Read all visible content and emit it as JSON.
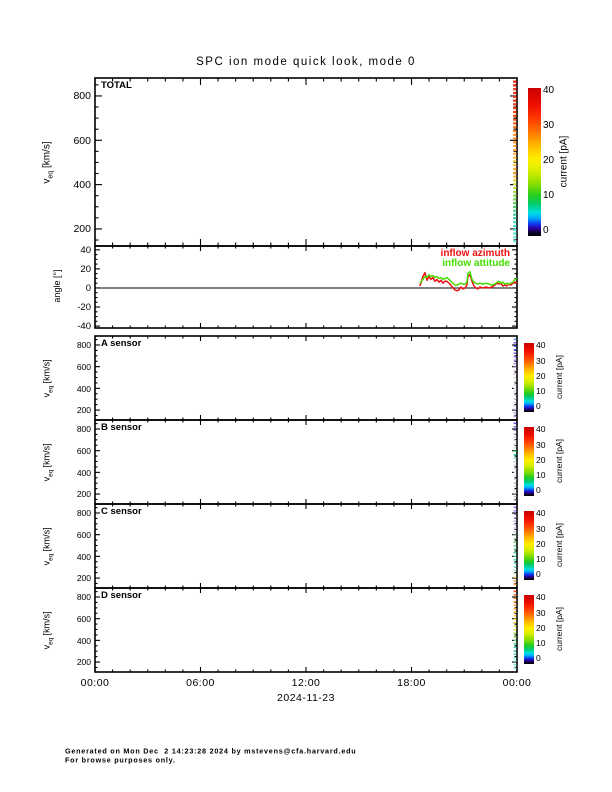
{
  "page": {
    "title": "SPC ion mode quick look, mode 0"
  },
  "footer": {
    "line1": "Generated on Mon Dec  2 14:23:28 2024 by mstevens@cfa.harvard.edu",
    "line2": "For browse purposes only."
  },
  "chart_data": {
    "type": "line",
    "title": "SPC ion mode quick look, mode 0",
    "x_axis": {
      "tick_labels": [
        "00:00",
        "06:00",
        "12:00",
        "18:00",
        "00:00"
      ],
      "tick_hours": [
        0,
        6,
        12,
        18,
        24
      ],
      "date_label": "2024-11-23",
      "range_hours": [
        0,
        24
      ],
      "major_step_hours": 6,
      "minor_step_hours": 1
    },
    "colorbar": {
      "title": "current [pA]",
      "ticks": [
        0,
        10,
        20,
        30,
        40
      ],
      "range": [
        0,
        40
      ],
      "gradient_stops": [
        {
          "at": 0.0,
          "color": "#000000"
        },
        {
          "at": 0.02,
          "color": "#0a0020"
        },
        {
          "at": 0.05,
          "color": "#2a00a0"
        },
        {
          "at": 0.08,
          "color": "#1133ee"
        },
        {
          "at": 0.12,
          "color": "#00aaff"
        },
        {
          "at": 0.16,
          "color": "#00e0e0"
        },
        {
          "at": 0.21,
          "color": "#00cc77"
        },
        {
          "at": 0.27,
          "color": "#22cc22"
        },
        {
          "at": 0.35,
          "color": "#88dd00"
        },
        {
          "at": 0.44,
          "color": "#d8ee00"
        },
        {
          "at": 0.52,
          "color": "#ffee00"
        },
        {
          "at": 0.61,
          "color": "#ffbb00"
        },
        {
          "at": 0.7,
          "color": "#ff7700"
        },
        {
          "at": 0.79,
          "color": "#ff3c00"
        },
        {
          "at": 0.88,
          "color": "#f01000"
        },
        {
          "at": 1.0,
          "color": "#cc0000"
        }
      ]
    },
    "panels": [
      {
        "id": "total",
        "label": "TOTAL",
        "ylabel": {
          "pre": "v",
          "sub": "eq",
          "post": " [km/s]"
        },
        "yrange": [
          123,
          881
        ],
        "ymajor": [
          200,
          400,
          600,
          800
        ],
        "yminor_step": 50,
        "colorbar": "large",
        "strip": {
          "stops": [
            {
              "at": 0.0,
              "color": "#ee2211"
            },
            {
              "at": 0.22,
              "color": "#ee4411"
            },
            {
              "at": 0.32,
              "color": "#ff8822"
            },
            {
              "at": 0.44,
              "color": "#ffaa44"
            },
            {
              "at": 0.5,
              "color": "#eecc44"
            },
            {
              "at": 0.56,
              "color": "#ff9933"
            },
            {
              "at": 0.62,
              "color": "#dddd44"
            },
            {
              "at": 0.68,
              "color": "#aadd44"
            },
            {
              "at": 0.75,
              "color": "#55cc55"
            },
            {
              "at": 0.83,
              "color": "#44ccaa"
            },
            {
              "at": 0.9,
              "color": "#44ddcc"
            },
            {
              "at": 1.0,
              "color": "#88eedd"
            }
          ]
        }
      },
      {
        "id": "angle",
        "label": "",
        "ylabel": {
          "pre": "angle [°]"
        },
        "yrange": [
          -42,
          44
        ],
        "ymajor": [
          -40,
          -20,
          0,
          20,
          40
        ],
        "yminor_step": 5,
        "zero_line": true,
        "legend": [
          {
            "label": "inflow azimuth",
            "color": "#ee1111"
          },
          {
            "label": "inflow attitude",
            "color": "#44dd00"
          }
        ],
        "series": [
          {
            "name": "inflow azimuth",
            "color": "#ee1111",
            "points": [
              [
                18.48,
                2
              ],
              [
                18.65,
                12
              ],
              [
                18.76,
                16
              ],
              [
                18.88,
                8
              ],
              [
                18.99,
                12
              ],
              [
                19.1,
                9
              ],
              [
                19.22,
                11
              ],
              [
                19.33,
                7
              ],
              [
                19.45,
                9
              ],
              [
                19.56,
                6
              ],
              [
                19.67,
                8
              ],
              [
                19.79,
                5
              ],
              [
                19.9,
                7
              ],
              [
                20.01,
                7
              ],
              [
                20.13,
                5
              ],
              [
                20.24,
                3
              ],
              [
                20.36,
                0
              ],
              [
                20.47,
                -2
              ],
              [
                20.58,
                -3
              ],
              [
                20.7,
                -2
              ],
              [
                20.81,
                1
              ],
              [
                20.93,
                -1
              ],
              [
                21.04,
                0
              ],
              [
                21.15,
                3
              ],
              [
                21.21,
                12
              ],
              [
                21.32,
                14
              ],
              [
                21.44,
                7
              ],
              [
                21.55,
                2
              ],
              [
                21.66,
                0
              ],
              [
                21.78,
                -1
              ],
              [
                21.89,
                1
              ],
              [
                22.06,
                0
              ],
              [
                22.23,
                1
              ],
              [
                22.4,
                0
              ],
              [
                22.57,
                1
              ],
              [
                22.74,
                3
              ],
              [
                22.86,
                5
              ],
              [
                22.97,
                4
              ],
              [
                23.08,
                5
              ],
              [
                23.2,
                2
              ],
              [
                23.31,
                3
              ],
              [
                23.42,
                2
              ],
              [
                23.54,
                4
              ],
              [
                23.65,
                3
              ],
              [
                23.77,
                5
              ],
              [
                23.88,
                6
              ],
              [
                24,
                5
              ]
            ]
          },
          {
            "name": "inflow attitude",
            "color": "#44dd00",
            "points": [
              [
                18.48,
                5
              ],
              [
                18.65,
                9
              ],
              [
                18.76,
                12
              ],
              [
                18.88,
                11
              ],
              [
                18.99,
                14
              ],
              [
                19.1,
                12
              ],
              [
                19.22,
                13
              ],
              [
                19.33,
                11
              ],
              [
                19.45,
                12
              ],
              [
                19.56,
                10
              ],
              [
                19.67,
                11
              ],
              [
                19.79,
                9
              ],
              [
                19.9,
                10
              ],
              [
                20.01,
                11
              ],
              [
                20.13,
                9
              ],
              [
                20.24,
                7
              ],
              [
                20.36,
                5
              ],
              [
                20.47,
                3
              ],
              [
                20.58,
                3
              ],
              [
                20.7,
                4
              ],
              [
                20.81,
                5
              ],
              [
                20.93,
                4
              ],
              [
                21.04,
                4
              ],
              [
                21.15,
                6
              ],
              [
                21.21,
                15
              ],
              [
                21.32,
                17
              ],
              [
                21.44,
                9
              ],
              [
                21.55,
                6
              ],
              [
                21.66,
                5
              ],
              [
                21.78,
                4
              ],
              [
                21.89,
                5
              ],
              [
                22.06,
                4
              ],
              [
                22.23,
                5
              ],
              [
                22.4,
                4
              ],
              [
                22.57,
                3
              ],
              [
                22.74,
                4
              ],
              [
                22.86,
                6
              ],
              [
                22.97,
                7
              ],
              [
                23.08,
                5
              ],
              [
                23.2,
                6
              ],
              [
                23.31,
                4
              ],
              [
                23.42,
                5
              ],
              [
                23.54,
                4
              ],
              [
                23.65,
                5
              ],
              [
                23.77,
                6
              ],
              [
                23.88,
                9
              ],
              [
                24,
                10
              ]
            ]
          }
        ]
      },
      {
        "id": "a",
        "label": "A sensor",
        "ylabel": {
          "pre": "v",
          "sub": "eq",
          "post": " [km/s]"
        },
        "yrange": [
          108,
          883
        ],
        "ymajor": [
          200,
          400,
          600,
          800
        ],
        "yminor_step": 50,
        "colorbar": "small",
        "strip": {
          "stops": [
            {
              "at": 0.0,
              "color": "#55bbee"
            },
            {
              "at": 0.05,
              "color": "#8855ee"
            },
            {
              "at": 0.12,
              "color": "#4466ee"
            },
            {
              "at": 0.2,
              "color": "#8855dd"
            },
            {
              "at": 0.3,
              "color": "#aa88ee"
            },
            {
              "at": 0.4,
              "color": "#ddbbdd"
            },
            {
              "at": 0.5,
              "color": "#ddccdd"
            },
            {
              "at": 0.65,
              "color": "#ddddee"
            },
            {
              "at": 0.8,
              "color": "#ccccdd"
            },
            {
              "at": 0.95,
              "color": "#bbaadd"
            },
            {
              "at": 1.0,
              "color": "#9977cc"
            }
          ]
        }
      },
      {
        "id": "b",
        "label": "B sensor",
        "ylabel": {
          "pre": "v",
          "sub": "eq",
          "post": " [km/s]"
        },
        "yrange": [
          108,
          883
        ],
        "ymajor": [
          200,
          400,
          600,
          800
        ],
        "yminor_step": 50,
        "colorbar": "small",
        "strip": {
          "stops": [
            {
              "at": 0.0,
              "color": "#7744dd"
            },
            {
              "at": 0.08,
              "color": "#9977ee"
            },
            {
              "at": 0.15,
              "color": "#ccccdd"
            },
            {
              "at": 0.3,
              "color": "#ddddee"
            },
            {
              "at": 0.36,
              "color": "#44dd66"
            },
            {
              "at": 0.42,
              "color": "#33ddcc"
            },
            {
              "at": 0.5,
              "color": "#ccccdd"
            },
            {
              "at": 0.7,
              "color": "#ddddee"
            },
            {
              "at": 0.85,
              "color": "#ccccdd"
            },
            {
              "at": 1.0,
              "color": "#bbbbcc"
            }
          ]
        }
      },
      {
        "id": "c",
        "label": "C sensor",
        "ylabel": {
          "pre": "v",
          "sub": "eq",
          "post": " [km/s]"
        },
        "yrange": [
          108,
          883
        ],
        "ymajor": [
          200,
          400,
          600,
          800
        ],
        "yminor_step": 50,
        "colorbar": "small",
        "strip": {
          "stops": [
            {
              "at": 0.0,
              "color": "#9966ee"
            },
            {
              "at": 0.12,
              "color": "#bb99ee"
            },
            {
              "at": 0.3,
              "color": "#ccccee"
            },
            {
              "at": 0.45,
              "color": "#77cc77"
            },
            {
              "at": 0.58,
              "color": "#55ccaa"
            },
            {
              "at": 0.72,
              "color": "#66ddcc"
            },
            {
              "at": 0.82,
              "color": "#aaeedd"
            },
            {
              "at": 0.9,
              "color": "#eecc66"
            },
            {
              "at": 1.0,
              "color": "#ff8833"
            }
          ]
        }
      },
      {
        "id": "d",
        "label": "D sensor",
        "ylabel": {
          "pre": "v",
          "sub": "eq",
          "post": " [km/s]"
        },
        "yrange": [
          108,
          883
        ],
        "ymajor": [
          200,
          400,
          600,
          800
        ],
        "yminor_step": 50,
        "colorbar": "small",
        "strip": {
          "stops": [
            {
              "at": 0.0,
              "color": "#ee4422"
            },
            {
              "at": 0.08,
              "color": "#ff8822"
            },
            {
              "at": 0.25,
              "color": "#ffaa33"
            },
            {
              "at": 0.38,
              "color": "#ffdd44"
            },
            {
              "at": 0.5,
              "color": "#ccdd44"
            },
            {
              "at": 0.6,
              "color": "#77cc55"
            },
            {
              "at": 0.7,
              "color": "#44ccaa"
            },
            {
              "at": 0.85,
              "color": "#55ddcc"
            },
            {
              "at": 1.0,
              "color": "#99eedd"
            }
          ]
        }
      }
    ]
  }
}
